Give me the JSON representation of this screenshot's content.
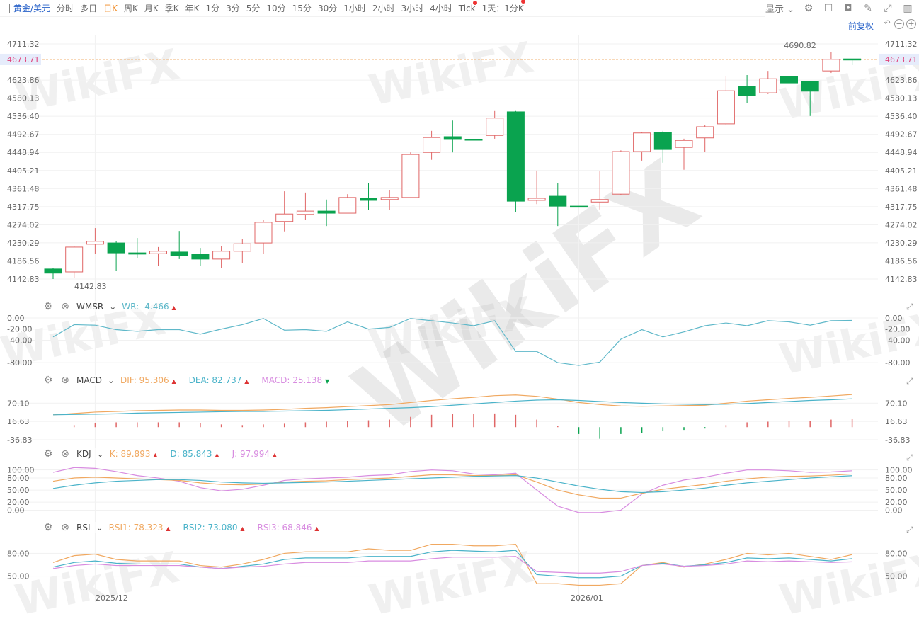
{
  "toolbar": {
    "items": [
      "黄金/美元",
      "分时",
      "多日",
      "日K",
      "周K",
      "月K",
      "季K",
      "年K",
      "1分",
      "3分",
      "5分",
      "10分",
      "15分",
      "30分",
      "1小时",
      "2小时",
      "3小时",
      "4小时",
      "Tick",
      "1天：1分K"
    ],
    "active_index": 3,
    "display_label": "显示",
    "fuquan_label": "前复权"
  },
  "colors": {
    "up": "#e06666",
    "down": "#0aa34f",
    "dif": "#f0a860",
    "dea": "#4ab3c9",
    "macd": "#d88ce0",
    "wr": "#5fb8c9",
    "last_price": "#e0407a"
  },
  "main": {
    "axis_labels": [
      "4711.32",
      "4673.71",
      "4623.86",
      "4580.13",
      "4536.40",
      "4492.67",
      "4448.94",
      "4405.21",
      "4361.48",
      "4317.75",
      "4274.02",
      "4230.29",
      "4186.56",
      "4142.83"
    ],
    "last_price": "4673.71",
    "high_label": "4690.82",
    "low_label": "4142.83"
  },
  "chart_data": {
    "type": "candlestick",
    "ylim": [
      4142.83,
      4711.32
    ],
    "candles": [
      [
        4167,
        4157,
        4170,
        4142.83
      ],
      [
        4160,
        4220,
        4223,
        4146
      ],
      [
        4227,
        4234,
        4266,
        4204
      ],
      [
        4230,
        4206,
        4235,
        4163
      ],
      [
        4206,
        4203,
        4242,
        4193
      ],
      [
        4204,
        4210,
        4220,
        4174
      ],
      [
        4208,
        4199,
        4259,
        4191
      ],
      [
        4203,
        4191,
        4218,
        4175
      ],
      [
        4191,
        4210,
        4222,
        4169
      ],
      [
        4210,
        4228,
        4240,
        4181
      ],
      [
        4230,
        4280,
        4285,
        4204
      ],
      [
        4282,
        4300,
        4355,
        4258
      ],
      [
        4299,
        4307,
        4352,
        4285
      ],
      [
        4307,
        4302,
        4335,
        4271
      ],
      [
        4302,
        4340,
        4348,
        4302
      ],
      [
        4338,
        4333,
        4374,
        4309
      ],
      [
        4335,
        4340,
        4357,
        4309
      ],
      [
        4340,
        4444,
        4449,
        4338
      ],
      [
        4449,
        4485,
        4501,
        4431
      ],
      [
        4487,
        4482,
        4526,
        4449
      ],
      [
        4481,
        4480,
        4481,
        4480
      ],
      [
        4490,
        4532,
        4549,
        4482
      ],
      [
        4547,
        4331,
        4549,
        4304
      ],
      [
        4333,
        4338,
        4405,
        4324
      ],
      [
        4343,
        4319,
        4374,
        4271
      ],
      [
        4319,
        4318,
        4319,
        4318
      ],
      [
        4329,
        4335,
        4403,
        4311
      ],
      [
        4348,
        4451,
        4454,
        4345
      ],
      [
        4451,
        4496,
        4499,
        4429
      ],
      [
        4497,
        4456,
        4501,
        4424
      ],
      [
        4461,
        4478,
        4482,
        4407
      ],
      [
        4484,
        4511,
        4516,
        4451
      ],
      [
        4518,
        4598,
        4633,
        4516
      ],
      [
        4609,
        4586,
        4636,
        4569
      ],
      [
        4593,
        4627,
        4646,
        4590
      ],
      [
        4633,
        4617,
        4636,
        4581
      ],
      [
        4621,
        4597,
        4621,
        4537
      ],
      [
        4646,
        4674,
        4690.82,
        4641
      ],
      [
        4675,
        4673.71,
        4675,
        4660
      ]
    ],
    "x_labels": [
      {
        "index": 2,
        "label": "2025/12"
      },
      {
        "index": 25,
        "label": "2026/01"
      }
    ],
    "indicators": {
      "wmsr": {
        "name": "WMSR",
        "label": "WR:",
        "value": "-4.466",
        "axis": [
          "0.00",
          "-20.00",
          "-40.00",
          "-80.00"
        ],
        "ylim": [
          -90,
          5
        ],
        "wr": [
          -34,
          -12,
          -13,
          -21,
          -24,
          -21,
          -21,
          -29,
          -20,
          -12,
          -1,
          -22,
          -21,
          -24,
          -7,
          -20,
          -17,
          -1,
          -5,
          -9,
          -14,
          -5,
          -60,
          -60,
          -80,
          -85,
          -79,
          -38,
          -21,
          -34,
          -25,
          -14,
          -9,
          -14,
          -5,
          -7,
          -13,
          -5,
          -4.466
        ]
      },
      "macd": {
        "name": "MACD",
        "dif_label": "DIF:",
        "dif_value": "95.306",
        "dea_label": "DEA:",
        "dea_value": "82.737",
        "macd_label": "MACD:",
        "macd_value": "25.138",
        "axis": [
          "70.10",
          "16.63",
          "-36.83"
        ],
        "ylim": [
          -45,
          110
        ],
        "dif": [
          36,
          40,
          44,
          46,
          48,
          49,
          50,
          50,
          49,
          49,
          50,
          52,
          55,
          57,
          60,
          63,
          66,
          72,
          78,
          83,
          87,
          92,
          94,
          90,
          82,
          72,
          66,
          62,
          61,
          62,
          63,
          64,
          70,
          76,
          80,
          84,
          87,
          91,
          95.306
        ],
        "dea": [
          36,
          37,
          38,
          39,
          41,
          42,
          43,
          44,
          45,
          46,
          46,
          47,
          48,
          49,
          51,
          53,
          55,
          57,
          60,
          64,
          68,
          72,
          76,
          79,
          80,
          78,
          75,
          72,
          70,
          68,
          67,
          66,
          67,
          69,
          72,
          75,
          78,
          80,
          82.737
        ],
        "hist": [
          0,
          6,
          12,
          14,
          14,
          14,
          14,
          12,
          8,
          6,
          8,
          10,
          14,
          16,
          18,
          20,
          22,
          30,
          36,
          38,
          38,
          40,
          36,
          22,
          4,
          -20,
          -34,
          -20,
          -18,
          -12,
          -8,
          -4,
          6,
          14,
          16,
          18,
          18,
          22,
          25.138
        ]
      },
      "kdj": {
        "name": "KDJ",
        "k_label": "K:",
        "k_value": "89.893",
        "d_label": "D:",
        "d_value": "85.843",
        "j_label": "J:",
        "j_value": "97.994",
        "axis": [
          "100.00",
          "80.00",
          "50.00",
          "20.00",
          "0.00"
        ],
        "ylim": [
          -8,
          110
        ],
        "k": [
          72,
          80,
          82,
          80,
          78,
          76,
          74,
          68,
          64,
          63,
          65,
          70,
          72,
          73,
          76,
          78,
          80,
          84,
          88,
          88,
          86,
          86,
          88,
          70,
          50,
          38,
          30,
          30,
          42,
          52,
          58,
          64,
          72,
          78,
          82,
          84,
          85,
          87,
          89.893
        ],
        "d": [
          54,
          62,
          68,
          72,
          74,
          76,
          76,
          74,
          70,
          68,
          67,
          68,
          69,
          70,
          72,
          74,
          76,
          78,
          80,
          82,
          84,
          85,
          86,
          80,
          70,
          60,
          52,
          46,
          44,
          46,
          50,
          55,
          62,
          68,
          72,
          76,
          80,
          83,
          85.843
        ],
        "j": [
          94,
          106,
          104,
          96,
          86,
          80,
          72,
          56,
          48,
          52,
          62,
          74,
          78,
          80,
          82,
          86,
          88,
          96,
          100,
          98,
          90,
          88,
          92,
          50,
          10,
          -6,
          -6,
          0,
          40,
          62,
          75,
          82,
          92,
          100,
          100,
          98,
          94,
          95,
          97.994
        ]
      },
      "rsi": {
        "name": "RSI",
        "rsi1_label": "RSI1:",
        "rsi1_value": "78.323",
        "rsi2_label": "RSI2:",
        "rsi2_value": "73.080",
        "rsi3_label": "RSI3:",
        "rsi3_value": "68.846",
        "axis": [
          "80.00",
          "50.00"
        ],
        "ylim": [
          30,
          100
        ],
        "rsi1": [
          68,
          77,
          79,
          72,
          70,
          70,
          70,
          64,
          62,
          66,
          72,
          80,
          82,
          82,
          82,
          86,
          84,
          84,
          92,
          92,
          90,
          90,
          92,
          40,
          40,
          38,
          38,
          40,
          64,
          68,
          62,
          66,
          72,
          80,
          78,
          80,
          76,
          72,
          78.323
        ],
        "rsi2": [
          62,
          68,
          70,
          67,
          66,
          66,
          66,
          62,
          60,
          63,
          66,
          72,
          74,
          74,
          74,
          76,
          76,
          76,
          82,
          84,
          83,
          82,
          84,
          52,
          50,
          48,
          48,
          50,
          64,
          67,
          63,
          65,
          68,
          74,
          73,
          74,
          72,
          70,
          73.08
        ],
        "rsi3": [
          60,
          64,
          66,
          64,
          64,
          64,
          64,
          62,
          60,
          62,
          63,
          66,
          68,
          68,
          68,
          70,
          70,
          70,
          73,
          75,
          75,
          75,
          76,
          56,
          55,
          54,
          54,
          56,
          64,
          66,
          63,
          64,
          66,
          70,
          69,
          70,
          69,
          68,
          68.846
        ]
      }
    }
  },
  "watermark": "WikiFX"
}
